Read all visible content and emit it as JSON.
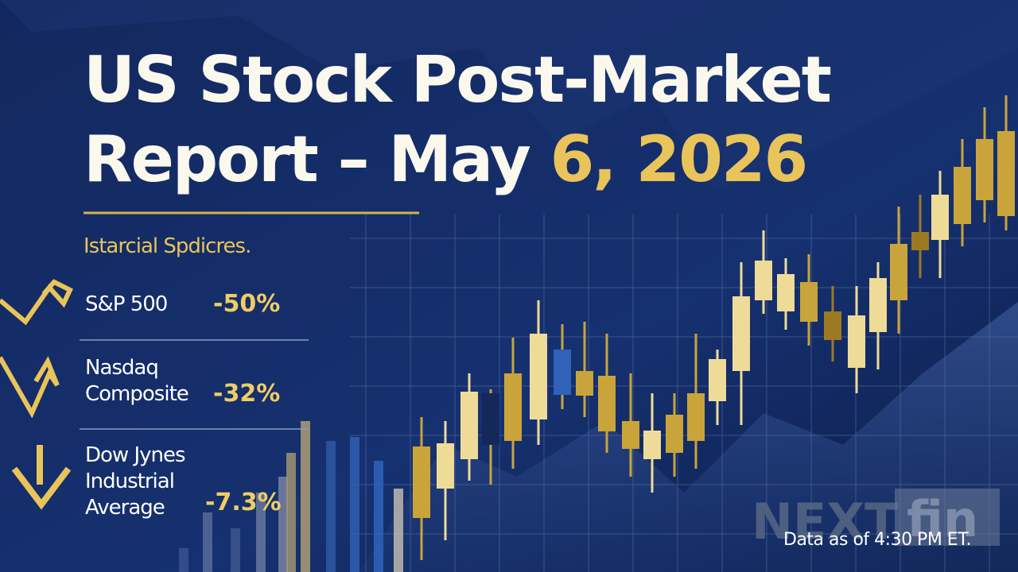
{
  "header": {
    "title_line1": "US Stock Post-Market",
    "title_line2_start": "Report – May ",
    "title_line2_highlight": "6, 2026",
    "subtitle": "Istarcial Spdicres."
  },
  "indices": [
    {
      "name_lines": [
        "S&P 500"
      ],
      "change": "-50%"
    },
    {
      "name_lines": [
        "Nasdaq",
        "Composite"
      ],
      "change": "-32%"
    },
    {
      "name_lines": [
        "Dow Jynes",
        "Industrial",
        "Average"
      ],
      "change": "-7.3%"
    }
  ],
  "watermark": {
    "left": "NEXT",
    "right": "fin"
  },
  "footer": "Data as of 4:30 PM ET."
}
